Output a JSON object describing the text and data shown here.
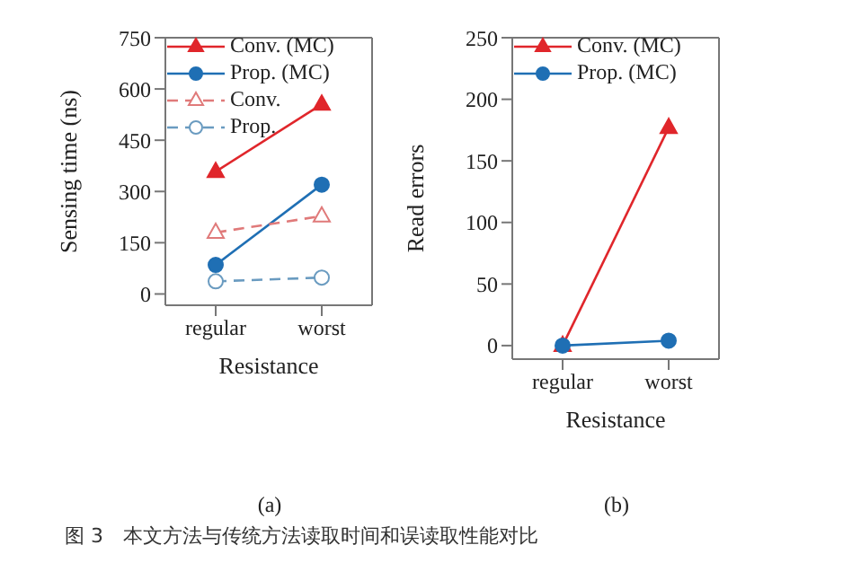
{
  "chart_data": [
    {
      "type": "line",
      "categories": [
        "regular",
        "worst"
      ],
      "xlabel": "Resistance",
      "ylabel": "Sensing time (ns)",
      "ylim": [
        -33,
        750
      ],
      "yticks": [
        0,
        150,
        300,
        450,
        600,
        750
      ],
      "grid": false,
      "legend": "top left",
      "annotations": [
        "(a)",
        "图 3　本文方法与传统方法读取时间和误读取性能对比"
      ],
      "series": [
        {
          "name": "Conv. (MC)",
          "color": "#e0262b",
          "values": [
            358,
            555
          ],
          "marker": "triangle",
          "line_style": "solid"
        },
        {
          "name": "Prop. (MC)",
          "color": "#1f6fb4",
          "values": [
            85,
            320
          ],
          "marker": "circle",
          "line_style": "solid"
        },
        {
          "name": "Conv.",
          "color": "#e07a7a",
          "values": [
            180,
            228
          ],
          "marker": "triangle",
          "line_style": "dashed"
        },
        {
          "name": "Prop.",
          "color": "#6a9bc0",
          "values": [
            37,
            48
          ],
          "marker": "circle",
          "line_style": "dashed"
        }
      ]
    },
    {
      "type": "line",
      "categories": [
        "regular",
        "worst"
      ],
      "xlabel": "Resistance",
      "ylabel": "Read errors",
      "ylim": [
        -11,
        250
      ],
      "yticks": [
        0,
        50,
        100,
        150,
        200,
        250
      ],
      "grid": false,
      "legend": "top left",
      "annotations": [
        "(b)"
      ],
      "series": [
        {
          "name": "Conv. (MC)",
          "color": "#e0262b",
          "values": [
            0,
            177
          ],
          "marker": "triangle",
          "line_style": "solid"
        },
        {
          "name": "Prop. (MC)",
          "color": "#1f6fb4",
          "values": [
            0,
            4
          ],
          "marker": "circle",
          "line_style": "solid"
        }
      ]
    }
  ]
}
